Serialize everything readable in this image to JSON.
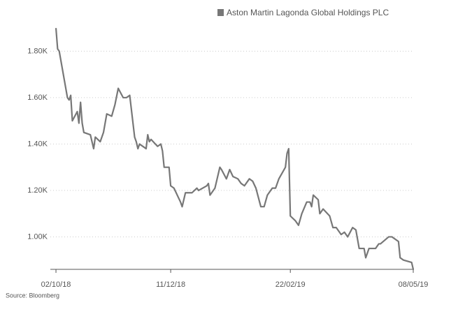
{
  "chart_data": {
    "type": "line",
    "source": "Source: Bloomberg",
    "x": [
      "2018-10-02",
      "2018-10-03",
      "2018-10-04",
      "2018-10-09",
      "2018-10-10",
      "2018-10-11",
      "2018-10-12",
      "2018-10-15",
      "2018-10-16",
      "2018-10-17",
      "2018-10-18",
      "2018-10-19",
      "2018-10-23",
      "2018-10-25",
      "2018-10-26",
      "2018-10-29",
      "2018-10-31",
      "2018-11-02",
      "2018-11-05",
      "2018-11-07",
      "2018-11-09",
      "2018-11-12",
      "2018-11-14",
      "2018-11-16",
      "2018-11-19",
      "2018-11-20",
      "2018-11-21",
      "2018-11-22",
      "2018-11-26",
      "2018-11-27",
      "2018-11-28",
      "2018-11-29",
      "2018-12-03",
      "2018-12-05",
      "2018-12-06",
      "2018-12-07",
      "2018-12-10",
      "2018-12-11",
      "2018-12-13",
      "2018-12-17",
      "2018-12-18",
      "2018-12-20",
      "2018-12-24",
      "2018-12-27",
      "2018-12-28",
      "2019-01-02",
      "2019-01-03",
      "2019-01-04",
      "2019-01-07",
      "2019-01-09",
      "2019-01-10",
      "2019-01-11",
      "2019-01-14",
      "2019-01-16",
      "2019-01-18",
      "2019-01-21",
      "2019-01-23",
      "2019-01-25",
      "2019-01-28",
      "2019-01-30",
      "2019-02-01",
      "2019-02-04",
      "2019-02-06",
      "2019-02-08",
      "2019-02-11",
      "2019-02-13",
      "2019-02-15",
      "2019-02-19",
      "2019-02-20",
      "2019-02-21",
      "2019-02-22",
      "2019-02-25",
      "2019-02-27",
      "2019-03-01",
      "2019-03-04",
      "2019-03-06",
      "2019-03-07",
      "2019-03-08",
      "2019-03-11",
      "2019-03-12",
      "2019-03-14",
      "2019-03-18",
      "2019-03-20",
      "2019-03-22",
      "2019-03-25",
      "2019-03-27",
      "2019-03-29",
      "2019-04-01",
      "2019-04-03",
      "2019-04-05",
      "2019-04-08",
      "2019-04-09",
      "2019-04-11",
      "2019-04-15",
      "2019-04-17",
      "2019-04-18",
      "2019-04-23",
      "2019-04-25",
      "2019-04-29",
      "2019-04-30",
      "2019-05-02",
      "2019-05-07",
      "2019-05-08"
    ],
    "series": [
      {
        "name": "Aston Martin Lagonda Global Holdings PLC",
        "color": "#777777",
        "values": [
          1.9,
          1.81,
          1.8,
          1.6,
          1.59,
          1.61,
          1.5,
          1.54,
          1.49,
          1.58,
          1.49,
          1.45,
          1.44,
          1.38,
          1.43,
          1.41,
          1.45,
          1.53,
          1.52,
          1.57,
          1.64,
          1.6,
          1.6,
          1.61,
          1.43,
          1.41,
          1.38,
          1.4,
          1.38,
          1.44,
          1.41,
          1.42,
          1.39,
          1.4,
          1.37,
          1.3,
          1.3,
          1.22,
          1.21,
          1.15,
          1.13,
          1.19,
          1.19,
          1.21,
          1.2,
          1.22,
          1.23,
          1.18,
          1.21,
          1.27,
          1.3,
          1.29,
          1.25,
          1.29,
          1.26,
          1.25,
          1.23,
          1.22,
          1.25,
          1.24,
          1.21,
          1.13,
          1.13,
          1.18,
          1.21,
          1.21,
          1.25,
          1.3,
          1.36,
          1.38,
          1.09,
          1.07,
          1.05,
          1.1,
          1.15,
          1.15,
          1.13,
          1.18,
          1.16,
          1.1,
          1.12,
          1.09,
          1.04,
          1.04,
          1.01,
          1.02,
          1.0,
          1.04,
          1.03,
          0.95,
          0.95,
          0.91,
          0.95,
          0.95,
          0.97,
          0.97,
          1.0,
          1.0,
          0.98,
          0.91,
          0.9,
          0.89,
          0.86
        ]
      }
    ],
    "xlim": [
      "2018-09-29",
      "2019-05-08"
    ],
    "xticks": [
      {
        "value": "2018-10-02",
        "label": "02/10/18"
      },
      {
        "value": "2018-12-11",
        "label": "11/12/18"
      },
      {
        "value": "2019-02-22",
        "label": "22/02/19"
      },
      {
        "value": "2019-05-08",
        "label": "08/05/19"
      }
    ],
    "ylim": [
      0.86,
      1.92
    ],
    "yticks": [
      {
        "value": 1,
        "label": "1.00K"
      },
      {
        "value": 1.2,
        "label": "1.20K"
      },
      {
        "value": 1.4,
        "label": "1.40K"
      },
      {
        "value": 1.6,
        "label": "1.60K"
      },
      {
        "value": 1.8,
        "label": "1.80K"
      }
    ],
    "grid": true
  }
}
